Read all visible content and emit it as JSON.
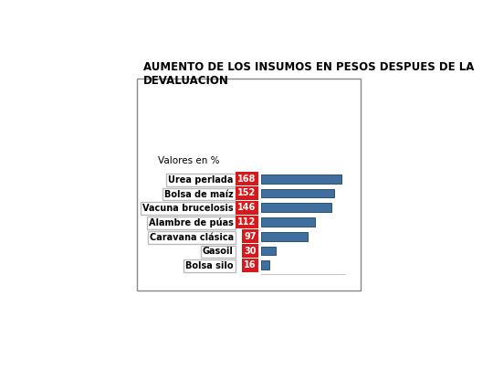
{
  "chart_data": {
    "type": "bar",
    "orientation": "horizontal",
    "title": "AUMENTO DE LOS INSUMOS EN PESOS DESPUES DE LA DEVALUACION",
    "subtitle": "Valores en %",
    "categories": [
      "Urea perlada",
      "Bolsa de maíz",
      "Vacuna brucelosis",
      "Alambre de púas",
      "Caravana clásica",
      "Gasoil",
      "Bolsa silo"
    ],
    "values": [
      168,
      152,
      146,
      112,
      97,
      30,
      16
    ],
    "color": "#3f6f9f",
    "xlim": [
      0,
      175
    ],
    "xticks": [],
    "data_labels": true,
    "tick_labels": "y",
    "grid": false
  }
}
